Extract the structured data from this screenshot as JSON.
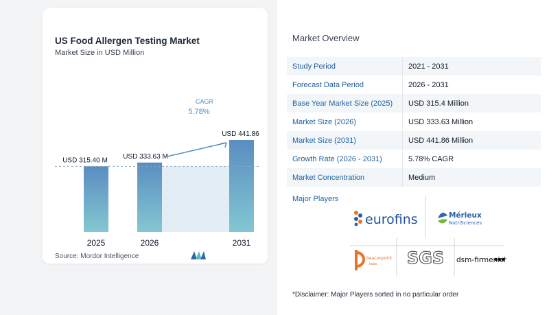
{
  "chart_data": {
    "type": "bar",
    "title": "US Food Allergen Testing Market",
    "subtitle": "Market Size in USD Million",
    "categories": [
      "2025",
      "2026",
      "2031"
    ],
    "values": [
      315.4,
      333.63,
      441.86
    ],
    "data_labels": [
      "USD 315.40 M",
      "USD 333.63 M",
      "USD 441.86 M"
    ],
    "cagr_label": "CAGR",
    "cagr_value": "5.78%",
    "colors": {
      "bar_top": "#5a8dc0",
      "bar_bottom": "#84c7d2",
      "shade": "#e3edf5",
      "arrow": "#4a8fc2"
    }
  },
  "source": "Source:  Mordor Intelligence",
  "overview": {
    "title": "Market Overview",
    "rows": [
      {
        "label": "Study Period",
        "value": "2021 - 2031"
      },
      {
        "label": "Forecast Data Period",
        "value": "2026 - 2031"
      },
      {
        "label": "Base Year Market Size (2025)",
        "value": "USD 315.4 Million"
      },
      {
        "label": "Market Size (2026)",
        "value": "USD 333.63 Million"
      },
      {
        "label": "Market Size (2031)",
        "value": "USD 441.86 Million"
      },
      {
        "label": "Growth Rate (2026 - 2031)",
        "value": "5.78% CAGR"
      },
      {
        "label": "Market Concentration",
        "value": "Medium"
      }
    ]
  },
  "players": {
    "title": "Major Players",
    "names": [
      "eurofins",
      "Mérieux",
      "NutriSciences",
      "beaconpoint",
      "labs",
      "SGS",
      "dsm-firmenich"
    ]
  },
  "disclaimer": "*Disclaimer: Major Players sorted in no particular order"
}
